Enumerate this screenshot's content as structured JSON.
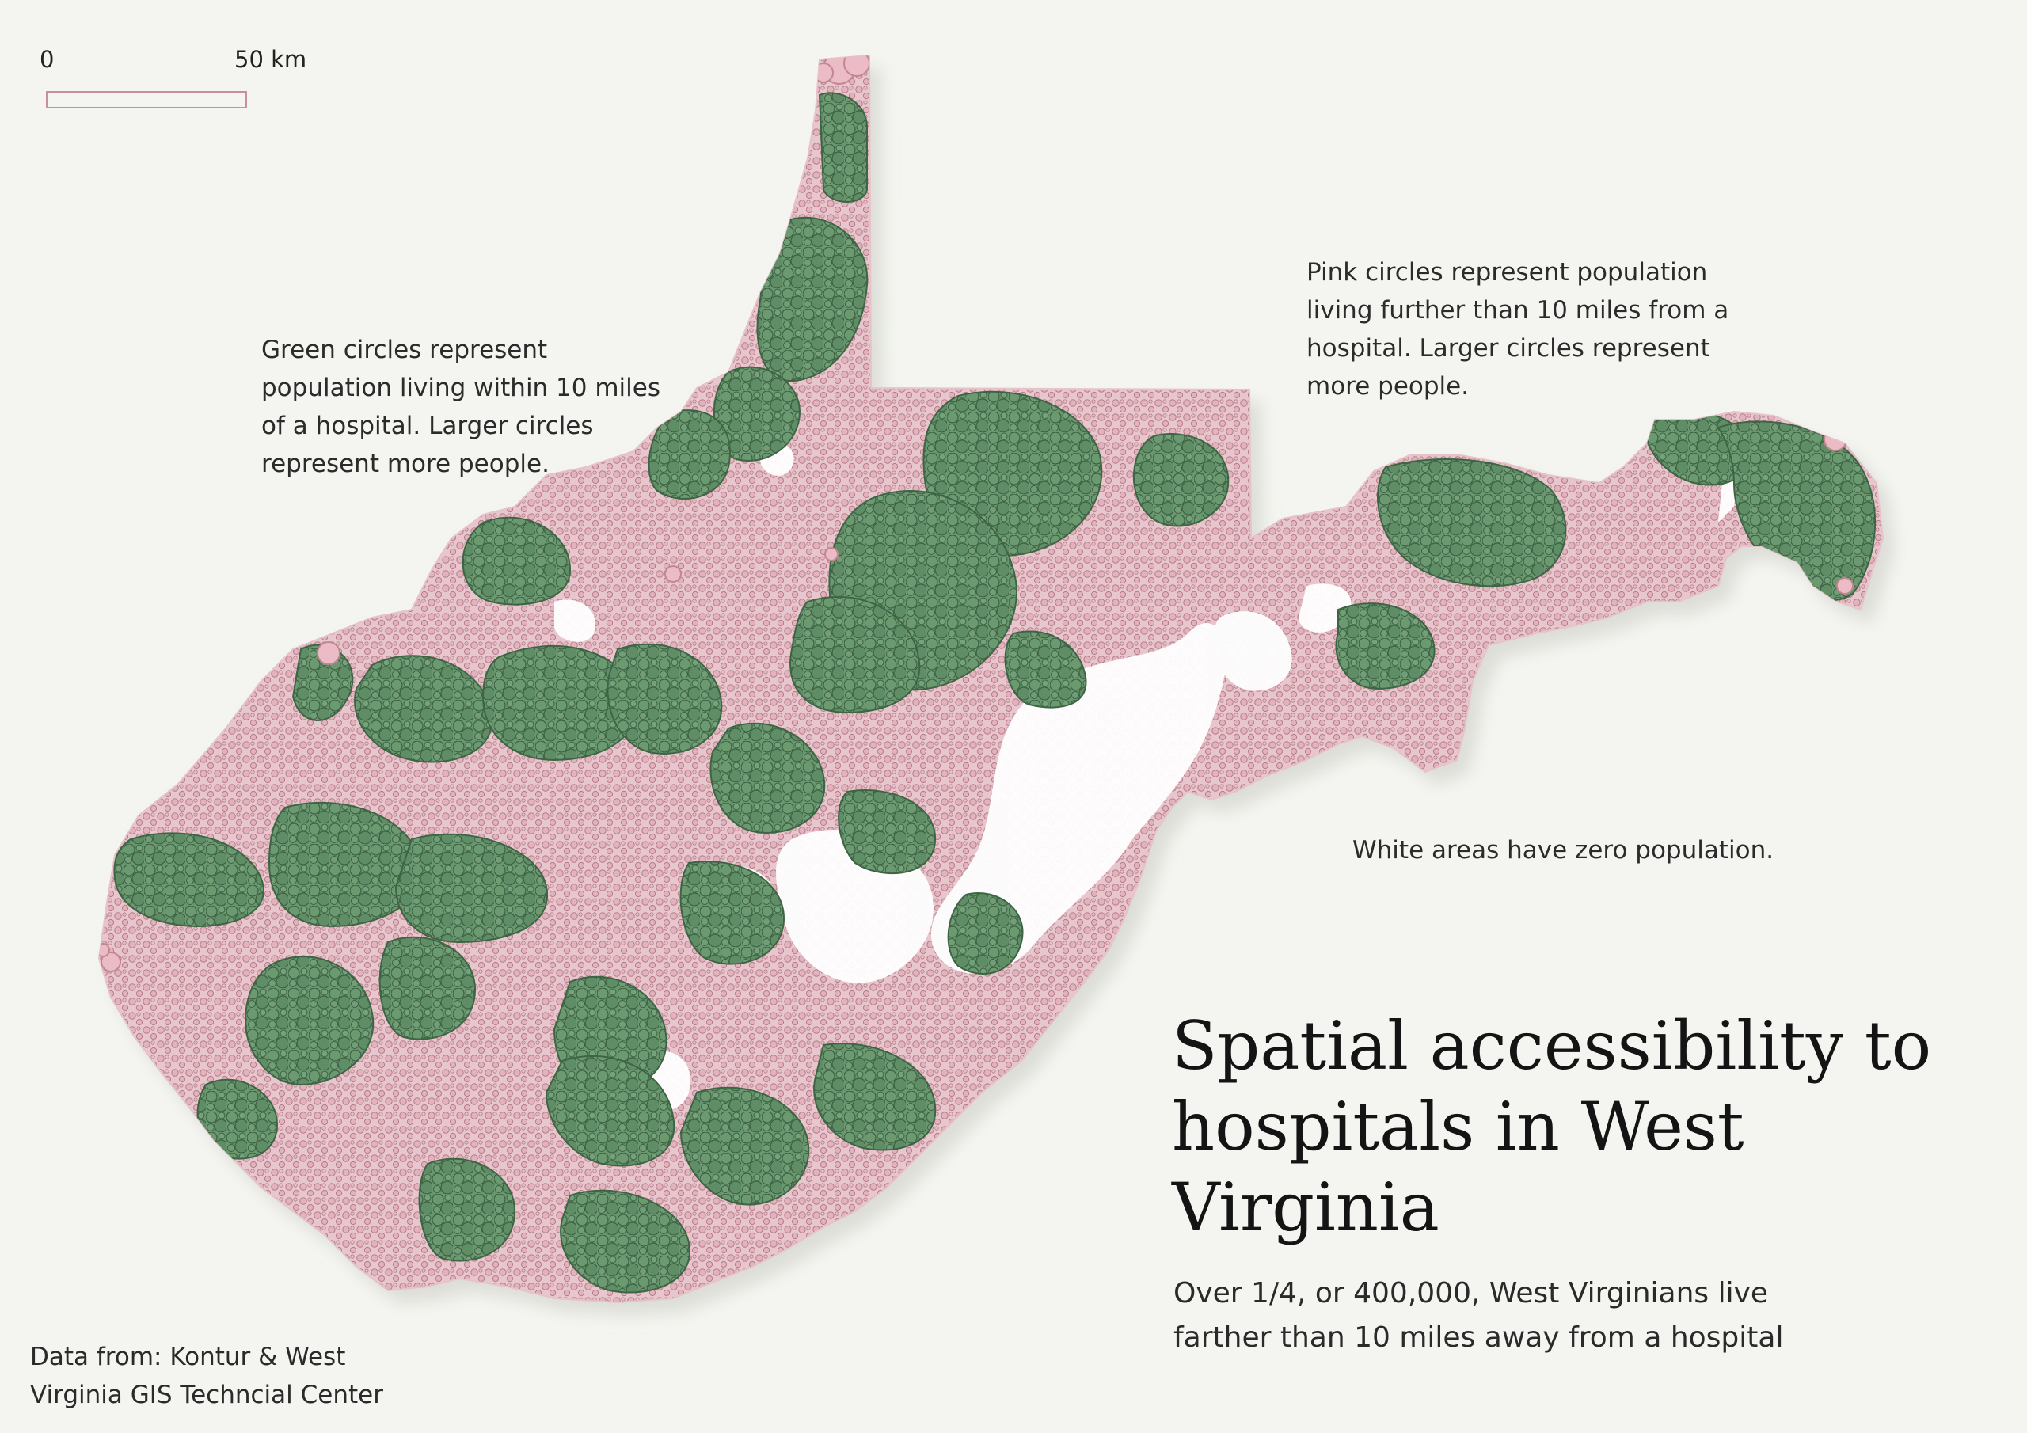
{
  "scale": {
    "start_label": "0",
    "end_label": "50 km"
  },
  "annotations": {
    "green": "Green circles represent\npopulation living within 10 miles\nof a hospital.  Larger circles\nrepresent more people.",
    "pink": "Pink circles represent population\nliving further than 10 miles from a\nhospital.  Larger circles represent\nmore people.",
    "white": "White areas have zero population."
  },
  "title": "Spatial accessibility to\nhospitals in West\nVirginia",
  "subtitle": "Over 1/4, or 400,000, West Virginians live\nfarther than 10 miles away from a hospital",
  "credit": "Data from: Kontur & West\nVirginia GIS Techncial Center",
  "colors": {
    "background": "#f4f5f0",
    "green_fill": "#5f8f65",
    "green_stroke": "#3d6544",
    "pink_fill": "#e4b7c0",
    "pink_stroke": "#b97d8a",
    "empty_area": "#ffffff"
  }
}
